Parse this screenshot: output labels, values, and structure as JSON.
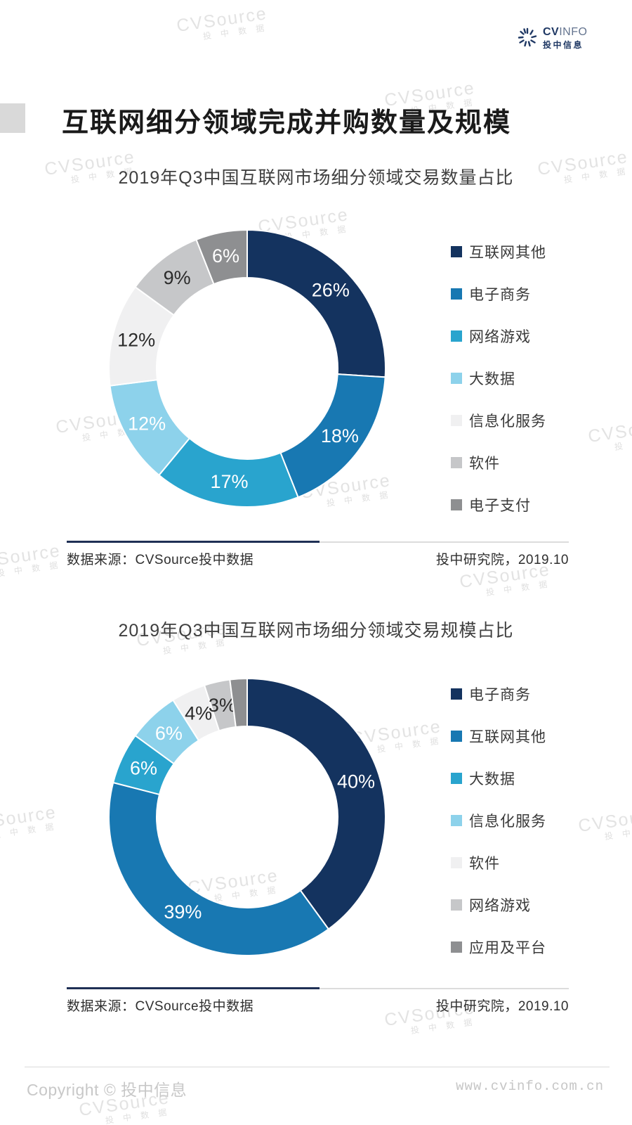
{
  "header": {
    "logo": {
      "cv": "CV",
      "info": "INFO",
      "cn": "投中信息"
    }
  },
  "page_title": "互联网细分领域完成并购数量及规模",
  "watermark": {
    "line1": "CVSource",
    "line2": "投 中 数 据"
  },
  "sections": [
    {
      "source_left": "数据来源：CVSource投中数据",
      "source_right": "投中研究院，2019.10"
    },
    {
      "source_left": "数据来源：CVSource投中数据",
      "source_right": "投中研究院，2019.10"
    }
  ],
  "footer": {
    "copyright": "Copyright © 投中信息",
    "url": "www.cvinfo.com.cn"
  },
  "chart_data": [
    {
      "type": "pie",
      "donut": true,
      "title": "2019年Q3中国互联网市场细分领域交易数量占比",
      "unit": "%",
      "legend_position": "right",
      "segments": [
        {
          "name": "互联网其他",
          "value": 26,
          "label": "26%",
          "color": "#14335f",
          "label_color": "#ffffff"
        },
        {
          "name": "电子商务",
          "value": 18,
          "label": "18%",
          "color": "#1878b2",
          "label_color": "#ffffff"
        },
        {
          "name": "网络游戏",
          "value": 17,
          "label": "17%",
          "color": "#29a4ce",
          "label_color": "#ffffff"
        },
        {
          "name": "大数据",
          "value": 12,
          "label": "12%",
          "color": "#8dd2eb",
          "label_color": "#ffffff"
        },
        {
          "name": "信息化服务",
          "value": 12,
          "label": "12%",
          "color": "#f0f0f1",
          "label_color": "#2b2b2b"
        },
        {
          "name": "软件",
          "value": 9,
          "label": "9%",
          "color": "#c6c7c9",
          "label_color": "#2b2b2b"
        },
        {
          "name": "电子支付",
          "value": 6,
          "label": "6%",
          "color": "#8e8f91",
          "label_color": "#ffffff"
        }
      ]
    },
    {
      "type": "pie",
      "donut": true,
      "title": "2019年Q3中国互联网市场细分领域交易规模占比",
      "unit": "%",
      "legend_position": "right",
      "segments": [
        {
          "name": "电子商务",
          "value": 40,
          "label": "40%",
          "color": "#14335f",
          "label_color": "#ffffff"
        },
        {
          "name": "互联网其他",
          "value": 39,
          "label": "39%",
          "color": "#1878b2",
          "label_color": "#ffffff"
        },
        {
          "name": "大数据",
          "value": 6,
          "label": "6%",
          "color": "#29a4ce",
          "label_color": "#ffffff"
        },
        {
          "name": "信息化服务",
          "value": 6,
          "label": "6%",
          "color": "#8dd2eb",
          "label_color": "#ffffff"
        },
        {
          "name": "软件",
          "value": 4,
          "label": "4%",
          "color": "#f0f0f1",
          "label_color": "#2b2b2b"
        },
        {
          "name": "网络游戏",
          "value": 3,
          "label": "3%",
          "color": "#c6c7c9",
          "label_color": "#2b2b2b"
        },
        {
          "name": "应用及平台",
          "value": 2,
          "label": "",
          "color": "#8e8f91",
          "label_color": "#ffffff"
        }
      ]
    }
  ]
}
